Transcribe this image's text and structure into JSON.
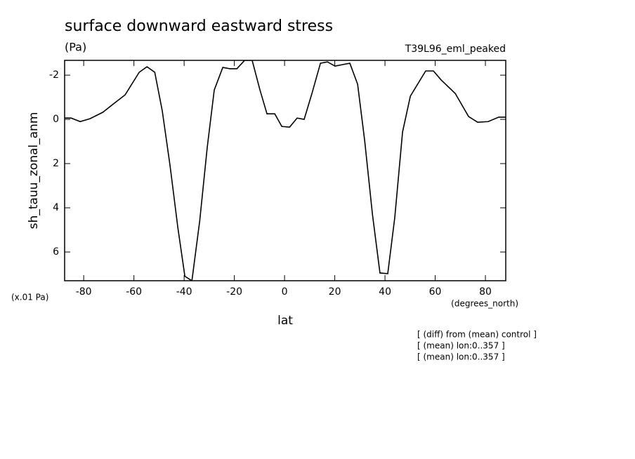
{
  "chart_data": {
    "type": "line",
    "title": "surface downward eastward stress",
    "subtitle": "(Pa)",
    "run_label": "T39L96_eml_peaked",
    "ylabel": "sh_tauu_zonal_anm",
    "y_units": "(x.01 Pa)",
    "x_units": "(degrees_north)",
    "xlabel": "lat",
    "notes": [
      "[ (diff) from (mean) control ]",
      "[ (mean) lon:0..357 ]",
      "[ (mean) lon:0..357 ]"
    ],
    "xlim": [
      -87.6,
      88.1
    ],
    "ylim": [
      -2.67,
      7.3
    ],
    "y_inverted": true,
    "xticks": [
      -80,
      -60,
      -40,
      -20,
      0,
      20,
      40,
      60,
      80
    ],
    "yticks": [
      -2,
      0,
      2,
      4,
      6
    ],
    "series": [
      {
        "color": "#000000",
        "x": [
          -87.6,
          -85.0,
          -81.4,
          -77.5,
          -72.4,
          -68.5,
          -63.5,
          -57.9,
          -54.8,
          -51.7,
          -48.7,
          -45.6,
          -42.5,
          -39.7,
          -36.9,
          -33.8,
          -30.8,
          -28.0,
          -24.6,
          -21.8,
          -19.0,
          -15.9,
          -12.9,
          -9.8,
          -7.0,
          -3.9,
          -1.1,
          2.0,
          5.0,
          7.8,
          10.9,
          14.3,
          17.1,
          20.1,
          23.2,
          26.0,
          29.1,
          31.9,
          35.0,
          38.0,
          41.1,
          43.9,
          47.0,
          50.1,
          56.2,
          59.3,
          62.4,
          68.0,
          73.3,
          76.9,
          81.1,
          85.3,
          88.1
        ],
        "values": [
          -0.06,
          -0.06,
          0.1,
          -0.03,
          -0.32,
          -0.67,
          -1.11,
          -2.13,
          -2.38,
          -2.13,
          -0.38,
          2.1,
          4.9,
          7.1,
          7.3,
          4.6,
          1.27,
          -1.33,
          -2.35,
          -2.29,
          -2.29,
          -2.67,
          -2.67,
          -1.33,
          -0.25,
          -0.25,
          0.32,
          0.35,
          -0.06,
          0,
          -1.17,
          -2.54,
          -2.6,
          -2.41,
          -2.48,
          -2.54,
          -1.59,
          0.95,
          4.29,
          6.95,
          6.98,
          4.44,
          0.57,
          -1.05,
          -2.19,
          -2.19,
          -1.78,
          -1.17,
          -0.13,
          0.13,
          0.1,
          -0.1,
          -0.1
        ]
      }
    ]
  }
}
